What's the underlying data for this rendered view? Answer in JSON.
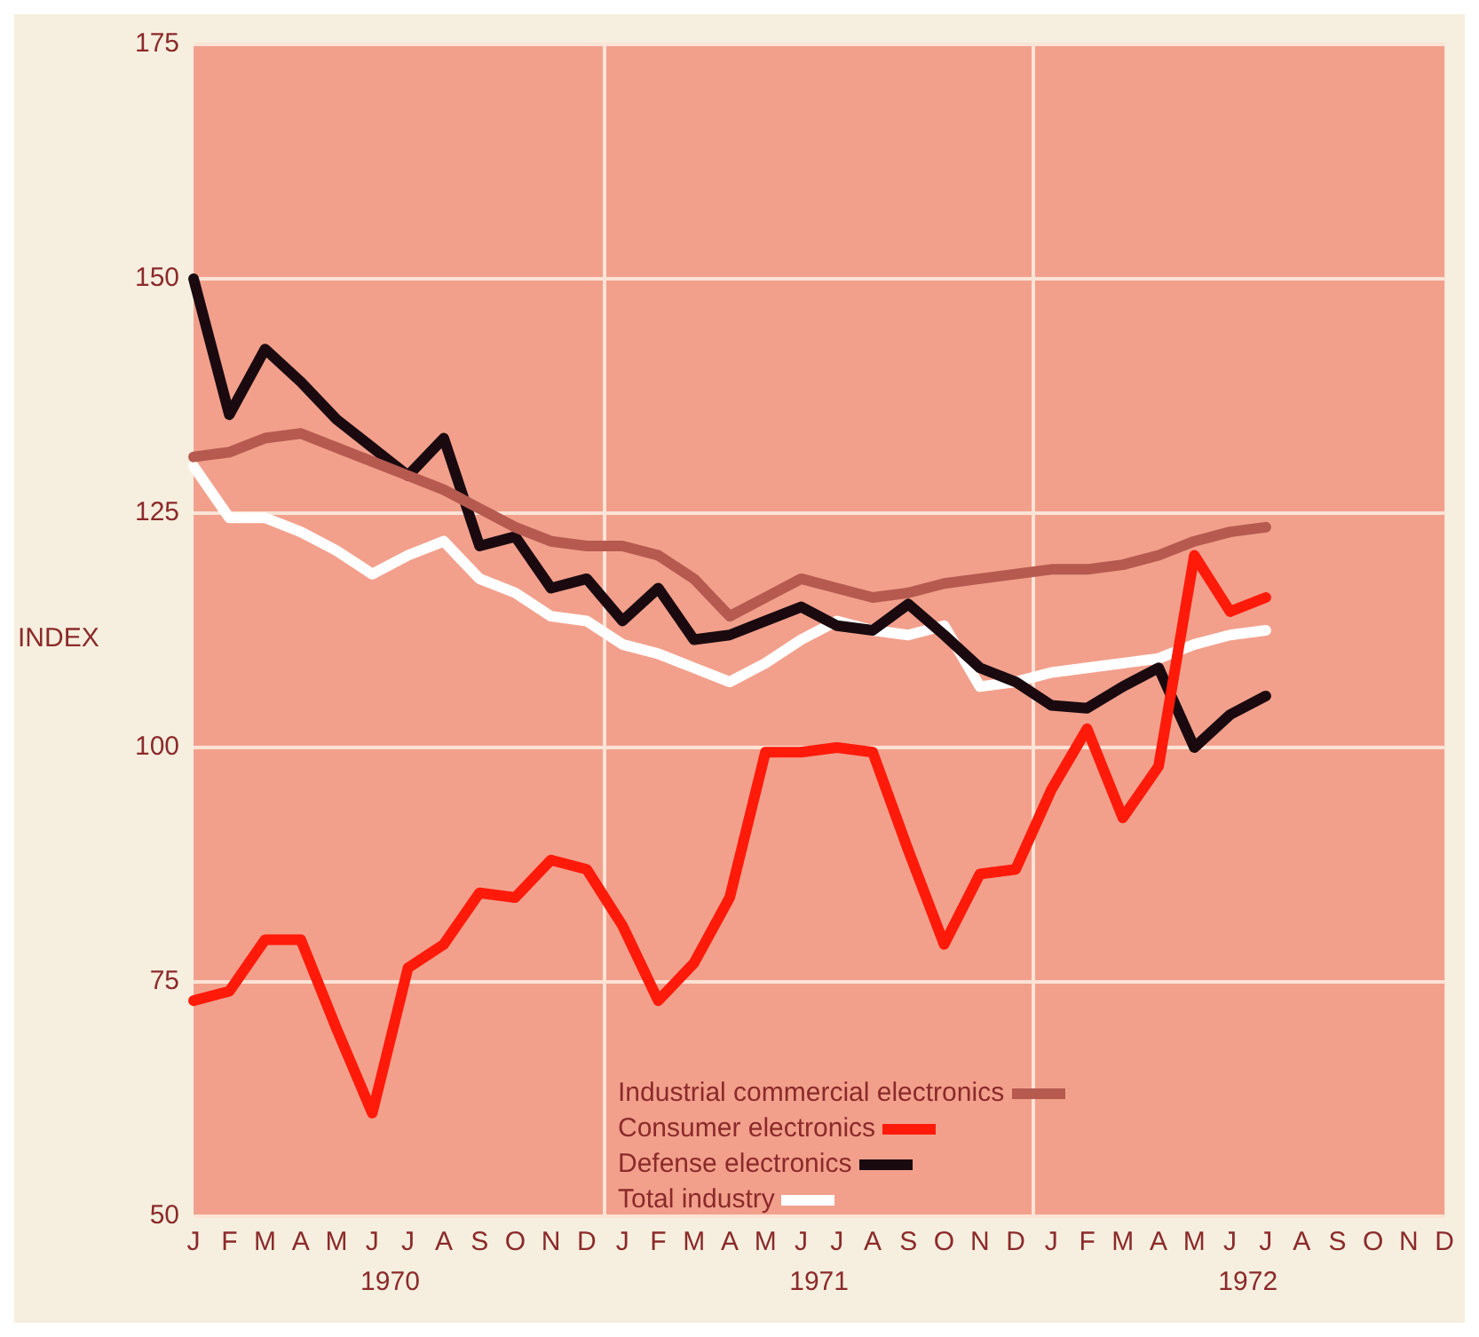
{
  "chart_data": {
    "type": "line",
    "ylabel": "INDEX",
    "categories": [
      "J",
      "F",
      "M",
      "A",
      "M",
      "J",
      "J",
      "A",
      "S",
      "O",
      "N",
      "D",
      "J",
      "F",
      "M",
      "A",
      "M",
      "J",
      "J",
      "A",
      "S",
      "O",
      "N",
      "D",
      "J",
      "F",
      "M",
      "A",
      "M",
      "J",
      "J",
      "A",
      "S",
      "O",
      "N",
      "D"
    ],
    "series": [
      {
        "name": "Industrial commercial electronics",
        "color": "#b65a50",
        "values": [
          131,
          131.5,
          133,
          133.5,
          132,
          130.5,
          129,
          127.5,
          125.5,
          123.5,
          122,
          121.5,
          121.5,
          120.5,
          118,
          114,
          116,
          118,
          117,
          116,
          116.5,
          117.5,
          118,
          118.5,
          119,
          119,
          119.5,
          120.5,
          122,
          123,
          123.5,
          null,
          null,
          null,
          null,
          null
        ]
      },
      {
        "name": "Consumer electronics",
        "color": "#ff1a0a",
        "values": [
          73,
          74,
          79.5,
          79.5,
          70,
          61,
          76.5,
          79,
          84.5,
          84,
          88,
          87,
          81,
          73,
          77,
          84,
          99.5,
          99.5,
          100,
          99.5,
          89,
          79,
          86.5,
          87,
          95.5,
          102,
          92.5,
          98,
          120.5,
          114.5,
          116,
          null,
          null,
          null,
          null,
          null
        ]
      },
      {
        "name": "Defense electronics",
        "color": "#1a0a10",
        "values": [
          150,
          135.5,
          142.5,
          139,
          135,
          132,
          129,
          133,
          121.5,
          122.5,
          117,
          118,
          113.5,
          117,
          111.5,
          112,
          113.5,
          115,
          113,
          112.5,
          115.3,
          112,
          108.5,
          107,
          104.5,
          104.2,
          106.5,
          108.5,
          100,
          103.5,
          105.5,
          null,
          null,
          null,
          null,
          null
        ]
      },
      {
        "name": "Total industry",
        "color": "#ffffff",
        "values": [
          130,
          124.5,
          124.5,
          123,
          121,
          118.5,
          120.5,
          122,
          118,
          116.5,
          114,
          113.5,
          111,
          110,
          108.5,
          107,
          109,
          111.5,
          113.5,
          112.5,
          112,
          113,
          106.5,
          107,
          108,
          108.5,
          109,
          109.5,
          111,
          112,
          112.5,
          null,
          null,
          null,
          null,
          null
        ]
      }
    ],
    "ylim": [
      50,
      175
    ],
    "yticks": [
      50,
      75,
      100,
      125,
      150,
      175
    ],
    "annotations": [
      "1970",
      "1971",
      "1972"
    ],
    "grid": true,
    "legend": "bottom",
    "marker": "none",
    "line_style": "solid"
  }
}
